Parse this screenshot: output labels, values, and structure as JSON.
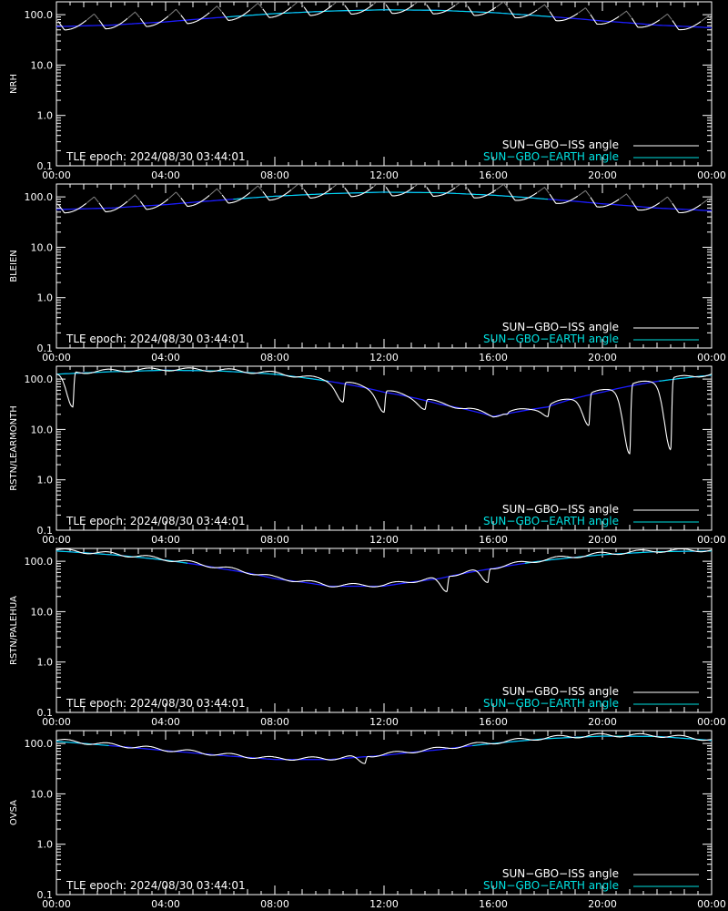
{
  "legend": {
    "iss_label": "SUN−GBO−ISS angle",
    "earth_label": "SUN−GBO−EARTH angle",
    "epoch_text": "TLE epoch: 2024/08/30 03:44:01"
  },
  "colors": {
    "background": "#000000",
    "axes": "#ffffff",
    "iss_day": "#ffffff",
    "iss_night": "#808080",
    "earth_line": "#1c1cff",
    "earth_label": "#00e0e0"
  },
  "chart_data": [
    {
      "type": "line",
      "ylabel": "NRH",
      "x_unit": "hours",
      "xlim": [
        0,
        24
      ],
      "x_ticks": [
        "00:00",
        "04:00",
        "08:00",
        "12:00",
        "16:00",
        "20:00",
        "00:00"
      ],
      "y_scale": "log",
      "ylim": [
        0.1,
        180
      ],
      "y_ticks": [
        "100.0",
        "10.0",
        "1.0",
        "0.1"
      ],
      "series": [
        {
          "name": "SUN−GBO−EARTH angle",
          "x": [
            0,
            2,
            4,
            6,
            8,
            10,
            12,
            14,
            16,
            18,
            20,
            22,
            24
          ],
          "values": [
            58,
            62,
            72,
            88,
            105,
            118,
            125,
            122,
            110,
            92,
            75,
            62,
            55
          ]
        },
        {
          "name": "SUN−GBO−ISS angle",
          "shape": "periodic-humps",
          "period_h": 1.5,
          "phase_h": 0.3,
          "hump_ratio": 1.7
        }
      ]
    },
    {
      "type": "line",
      "ylabel": "BLEIEN",
      "x_unit": "hours",
      "xlim": [
        0,
        24
      ],
      "x_ticks": [
        "00:00",
        "04:00",
        "08:00",
        "12:00",
        "16:00",
        "20:00",
        "00:00"
      ],
      "y_scale": "log",
      "ylim": [
        0.1,
        180
      ],
      "y_ticks": [
        "100.0",
        "10.0",
        "1.0",
        "0.1"
      ],
      "series": [
        {
          "name": "SUN−GBO−EARTH angle",
          "x": [
            0,
            2,
            4,
            6,
            8,
            10,
            12,
            14,
            16,
            18,
            20,
            22,
            24
          ],
          "values": [
            56,
            60,
            70,
            86,
            103,
            116,
            124,
            121,
            108,
            90,
            73,
            60,
            53
          ]
        },
        {
          "name": "SUN−GBO−ISS angle",
          "shape": "periodic-humps",
          "period_h": 1.5,
          "phase_h": 0.3,
          "hump_ratio": 1.7
        }
      ]
    },
    {
      "type": "line",
      "ylabel": "RSTN/LEARMONTH",
      "x_unit": "hours",
      "xlim": [
        0,
        24
      ],
      "x_ticks": [
        "00:00",
        "04:00",
        "08:00",
        "12:00",
        "16:00",
        "20:00",
        "00:00"
      ],
      "y_scale": "log",
      "ylim": [
        0.1,
        180
      ],
      "y_ticks": [
        "100.0",
        "10.0",
        "1.0",
        "0.1"
      ],
      "series": [
        {
          "name": "SUN−GBO−EARTH angle",
          "x": [
            0,
            2,
            4,
            6,
            8,
            10,
            12,
            14,
            16,
            18,
            20,
            22,
            24
          ],
          "values": [
            125,
            140,
            150,
            145,
            125,
            90,
            55,
            32,
            18,
            28,
            55,
            90,
            120
          ]
        },
        {
          "name": "SUN−GBO−ISS angle",
          "shape": "periodic-dips",
          "dip_minima": [
            [
              0.6,
              28
            ],
            [
              10.5,
              35
            ],
            [
              12.0,
              22
            ],
            [
              13.5,
              25
            ],
            [
              15.0,
              26
            ],
            [
              16.5,
              20
            ],
            [
              18.0,
              18
            ],
            [
              19.5,
              12
            ],
            [
              21.0,
              3.3
            ],
            [
              22.5,
              4
            ]
          ]
        }
      ]
    },
    {
      "type": "line",
      "ylabel": "RSTN/PALEHUA",
      "x_unit": "hours",
      "xlim": [
        0,
        24
      ],
      "x_ticks": [
        "00:00",
        "04:00",
        "08:00",
        "12:00",
        "16:00",
        "20:00",
        "00:00"
      ],
      "y_scale": "log",
      "ylim": [
        0.1,
        180
      ],
      "y_ticks": [
        "100.0",
        "10.0",
        "1.0",
        "0.1"
      ],
      "series": [
        {
          "name": "SUN−GBO−EARTH angle",
          "x": [
            0,
            2,
            4,
            6,
            8,
            10,
            12,
            14,
            16,
            18,
            20,
            22,
            24
          ],
          "values": [
            160,
            135,
            105,
            72,
            45,
            32,
            32,
            45,
            72,
            105,
            135,
            155,
            160
          ]
        },
        {
          "name": "SUN−GBO−ISS angle",
          "shape": "periodic-dips",
          "dip_minima": [
            [
              14.3,
              25
            ],
            [
              15.8,
              38
            ]
          ]
        }
      ]
    },
    {
      "type": "line",
      "ylabel": "OVSA",
      "x_unit": "hours",
      "xlim": [
        0,
        24
      ],
      "x_ticks": [
        "00:00",
        "04:00",
        "08:00",
        "12:00",
        "16:00",
        "20:00",
        "00:00"
      ],
      "y_scale": "log",
      "ylim": [
        0.1,
        180
      ],
      "y_ticks": [
        "100.0",
        "10.0",
        "1.0",
        "0.1"
      ],
      "series": [
        {
          "name": "SUN−GBO−EARTH angle",
          "x": [
            0,
            2,
            4,
            6,
            8,
            10,
            12,
            14,
            16,
            18,
            20,
            22,
            24
          ],
          "values": [
            110,
            90,
            72,
            58,
            48,
            48,
            58,
            75,
            100,
            125,
            140,
            138,
            115
          ]
        },
        {
          "name": "SUN−GBO−ISS angle",
          "shape": "periodic-dips",
          "dip_minima": [
            [
              11.3,
              40
            ]
          ]
        }
      ]
    }
  ]
}
